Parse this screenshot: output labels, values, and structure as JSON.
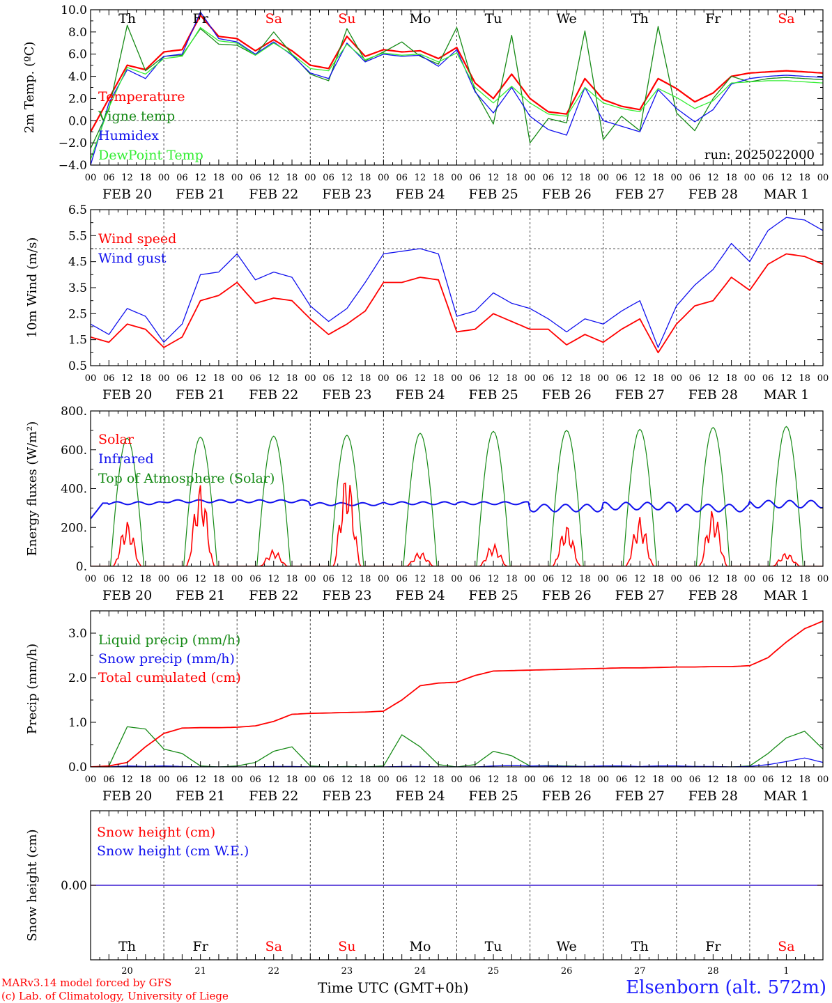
{
  "run_label": "run: 2025022000",
  "footer": {
    "credit_1": "MARv3.14 model forced by GFS",
    "credit_2": "(c) Lab. of Climatology, University of Liege",
    "time_axis": "Time UTC (GMT+0h)",
    "station": "Elsenborn (alt. 572m)"
  },
  "colors": {
    "red": "#ff0000",
    "green": "#168a16",
    "blue": "#1010ee",
    "lightgreen": "#33ee33",
    "weekend": "#ff0000",
    "weekday": "#000000"
  },
  "days": [
    {
      "abbr": "Th",
      "date": "FEB 20",
      "num": "20",
      "weekend": false
    },
    {
      "abbr": "Fr",
      "date": "FEB 21",
      "num": "21",
      "weekend": false
    },
    {
      "abbr": "Sa",
      "date": "FEB 22",
      "num": "22",
      "weekend": true
    },
    {
      "abbr": "Su",
      "date": "FEB 23",
      "num": "23",
      "weekend": true
    },
    {
      "abbr": "Mo",
      "date": "FEB 24",
      "num": "24",
      "weekend": false
    },
    {
      "abbr": "Tu",
      "date": "FEB 25",
      "num": "25",
      "weekend": false
    },
    {
      "abbr": "We",
      "date": "FEB 26",
      "num": "26",
      "weekend": false
    },
    {
      "abbr": "Th",
      "date": "FEB 27",
      "num": "27",
      "weekend": false
    },
    {
      "abbr": "Fr",
      "date": "FEB 28",
      "num": "28",
      "weekend": false
    },
    {
      "abbr": "Sa",
      "date": "MAR  1",
      "num": "1",
      "weekend": true
    }
  ],
  "hour_labels": [
    "00",
    "06",
    "12",
    "18"
  ],
  "chart_data": [
    {
      "type": "line",
      "ylabel": "2m Temp. (ºC)",
      "ylim": [
        -4,
        10
      ],
      "yticks": [
        "−4.0",
        "−2.0",
        "0.0",
        "2.0",
        "4.0",
        "6.0",
        "8.0",
        "10.0"
      ],
      "ytick_values": [
        -4,
        -2,
        0,
        2,
        4,
        6,
        8,
        10
      ],
      "ref_line": 0,
      "show_day_abbr": true,
      "x_hours": [
        0,
        6,
        12,
        18,
        24,
        30,
        36,
        42,
        48,
        54,
        60,
        66,
        72,
        78,
        84,
        90,
        96,
        102,
        108,
        114,
        120,
        126,
        132,
        138,
        144,
        150,
        156,
        162,
        168,
        174,
        180,
        186,
        192,
        198,
        204,
        210,
        216,
        222,
        228,
        234,
        240
      ],
      "series": [
        {
          "name": "Temperature",
          "color": "#ff0000",
          "width": 2.2,
          "values": [
            -1.0,
            2.0,
            5.0,
            4.6,
            6.2,
            6.4,
            9.5,
            7.6,
            7.4,
            6.3,
            7.3,
            6.3,
            5.0,
            4.7,
            7.6,
            5.8,
            6.4,
            6.2,
            6.3,
            5.6,
            6.6,
            3.4,
            2.0,
            4.2,
            2.0,
            0.8,
            0.6,
            3.8,
            1.9,
            1.3,
            1.0,
            3.8,
            2.9,
            1.7,
            2.5,
            4.0,
            4.3,
            4.4,
            4.5,
            4.4,
            4.3
          ]
        },
        {
          "name": "Vigne temp",
          "color": "#168a16",
          "width": 1.3,
          "values": [
            -2.5,
            1.0,
            8.6,
            4.5,
            5.8,
            5.9,
            8.3,
            6.9,
            6.8,
            5.9,
            8.0,
            6.0,
            4.2,
            3.6,
            8.3,
            5.4,
            6.2,
            7.1,
            5.8,
            5.1,
            8.4,
            2.7,
            -0.3,
            7.7,
            -2.0,
            0.2,
            -0.2,
            8.1,
            -1.7,
            0.4,
            -0.9,
            8.5,
            0.7,
            -0.9,
            2.0,
            4.0,
            3.5,
            3.8,
            3.9,
            3.8,
            3.7
          ]
        },
        {
          "name": "Humidex",
          "color": "#1010ee",
          "width": 1.3,
          "values": [
            -4.0,
            1.6,
            4.6,
            3.8,
            5.8,
            6.0,
            9.8,
            7.4,
            7.1,
            6.0,
            7.1,
            5.9,
            4.3,
            3.8,
            7.0,
            5.3,
            6.0,
            5.8,
            5.9,
            4.9,
            6.4,
            2.6,
            0.7,
            3.0,
            0.4,
            -0.8,
            -1.3,
            3.0,
            0.0,
            -0.5,
            -1.0,
            2.8,
            1.1,
            -0.1,
            1.0,
            3.3,
            3.8,
            4.0,
            4.1,
            4.0,
            3.9
          ]
        },
        {
          "name": "DewPoint Temp",
          "color": "#33ee33",
          "width": 1.3,
          "values": [
            -3.5,
            1.2,
            4.8,
            4.2,
            5.6,
            5.8,
            8.4,
            7.2,
            7.0,
            5.9,
            7.0,
            6.0,
            4.7,
            4.5,
            6.9,
            5.5,
            6.1,
            5.9,
            6.0,
            5.3,
            6.1,
            3.0,
            1.6,
            3.1,
            1.6,
            0.6,
            0.4,
            3.0,
            1.6,
            1.1,
            0.8,
            2.9,
            2.1,
            1.1,
            1.8,
            3.4,
            3.5,
            3.6,
            3.6,
            3.5,
            3.4
          ]
        }
      ]
    },
    {
      "type": "line",
      "ylabel": "10m Wind (m/s)",
      "ylim": [
        0.5,
        6.5
      ],
      "yticks": [
        "0.5",
        "1.5",
        "2.5",
        "3.5",
        "4.5",
        "5.5",
        "6.5"
      ],
      "ytick_values": [
        0.5,
        1.5,
        2.5,
        3.5,
        4.5,
        5.5,
        6.5
      ],
      "ref_line": 5,
      "show_day_abbr": false,
      "x_hours": [
        0,
        6,
        12,
        18,
        24,
        30,
        36,
        42,
        48,
        54,
        60,
        66,
        72,
        78,
        84,
        90,
        96,
        102,
        108,
        114,
        120,
        126,
        132,
        138,
        144,
        150,
        156,
        162,
        168,
        174,
        180,
        186,
        192,
        198,
        204,
        210,
        216,
        222,
        228,
        234,
        240
      ],
      "series": [
        {
          "name": "Wind speed",
          "color": "#ff0000",
          "width": 1.8,
          "values": [
            1.6,
            1.4,
            2.1,
            1.9,
            1.2,
            1.6,
            3.0,
            3.2,
            3.7,
            2.9,
            3.1,
            3.0,
            2.3,
            1.7,
            2.1,
            2.6,
            3.7,
            3.7,
            3.9,
            3.8,
            1.8,
            1.9,
            2.5,
            2.2,
            1.9,
            1.9,
            1.3,
            1.7,
            1.4,
            1.9,
            2.3,
            1.0,
            2.1,
            2.8,
            3.0,
            3.9,
            3.4,
            4.4,
            4.8,
            4.7,
            4.4
          ]
        },
        {
          "name": "Wind gust",
          "color": "#1010ee",
          "width": 1.3,
          "values": [
            2.1,
            1.7,
            2.7,
            2.4,
            1.4,
            2.1,
            4.0,
            4.1,
            4.8,
            3.8,
            4.1,
            3.9,
            2.8,
            2.2,
            2.7,
            3.7,
            4.8,
            4.9,
            5.0,
            4.8,
            2.4,
            2.6,
            3.3,
            2.9,
            2.7,
            2.3,
            1.8,
            2.3,
            2.1,
            2.6,
            3.0,
            1.2,
            2.8,
            3.6,
            4.2,
            5.2,
            4.5,
            5.7,
            6.2,
            6.1,
            5.7
          ]
        }
      ]
    },
    {
      "type": "line",
      "ylabel": "Energy fluxes (W/m²)",
      "ylim": [
        0,
        800
      ],
      "yticks": [
        "0.",
        "200.",
        "400.",
        "600.",
        "800."
      ],
      "ytick_values": [
        0,
        200,
        400,
        600,
        800
      ],
      "ref_line": null,
      "show_day_abbr": false,
      "solar_peaks": [
        235,
        430,
        85,
        490,
        75,
        115,
        215,
        255,
        295,
        70
      ],
      "toa_peaks": [
        660,
        665,
        670,
        675,
        685,
        695,
        700,
        705,
        715,
        720
      ],
      "infrared_daily": [
        325,
        335,
        335,
        320,
        325,
        325,
        300,
        310,
        300,
        320
      ],
      "series": [
        {
          "name": "Solar",
          "color": "#ff0000",
          "width": 1.6
        },
        {
          "name": "Infrared",
          "color": "#1010ee",
          "width": 2.0
        },
        {
          "name": "Top of Atmosphere (Solar)",
          "color": "#168a16",
          "width": 1.2
        }
      ]
    },
    {
      "type": "line",
      "ylabel": "Precip (mm/h)",
      "ylim": [
        0,
        3.5
      ],
      "yticks": [
        "0.0",
        "1.0",
        "2.0",
        "3.0"
      ],
      "ytick_values": [
        0,
        1,
        2,
        3
      ],
      "ref_line": null,
      "show_day_abbr": false,
      "x_hours": [
        0,
        6,
        12,
        18,
        24,
        30,
        36,
        42,
        48,
        54,
        60,
        66,
        72,
        78,
        84,
        90,
        96,
        102,
        108,
        114,
        120,
        126,
        132,
        138,
        144,
        150,
        156,
        162,
        168,
        174,
        180,
        186,
        192,
        198,
        204,
        210,
        216,
        222,
        228,
        234,
        240
      ],
      "series": [
        {
          "name": "Liquid precip (mm/h)",
          "color": "#168a16",
          "width": 1.3,
          "values": [
            0,
            0.02,
            0.9,
            0.85,
            0.4,
            0.3,
            0.02,
            0,
            0.02,
            0.1,
            0.35,
            0.45,
            0.02,
            0,
            0.01,
            0,
            0.02,
            0.72,
            0.45,
            0.05,
            0,
            0.05,
            0.35,
            0.25,
            0.02,
            0.03,
            0.02,
            0.01,
            0,
            0.01,
            0,
            0,
            0,
            0.01,
            0,
            0,
            0.02,
            0.3,
            0.65,
            0.8,
            0.4
          ]
        },
        {
          "name": "Snow precip (mm/h)",
          "color": "#1010ee",
          "width": 1.3,
          "values": [
            0,
            0,
            0.02,
            0.01,
            0.02,
            0.01,
            0,
            0,
            0,
            0,
            0.01,
            0.01,
            0,
            0,
            0,
            0,
            0,
            0.01,
            0.01,
            0,
            0,
            0,
            0.02,
            0.03,
            0.02,
            0.02,
            0.01,
            0.01,
            0.02,
            0.02,
            0.01,
            0.02,
            0.02,
            0.01,
            0.01,
            0,
            0.01,
            0.05,
            0.12,
            0.2,
            0.1
          ]
        },
        {
          "name": "Total cumulated (cm)",
          "color": "#ff0000",
          "width": 1.8,
          "values": [
            0,
            0.02,
            0.1,
            0.45,
            0.75,
            0.87,
            0.88,
            0.88,
            0.89,
            0.92,
            1.02,
            1.18,
            1.2,
            1.21,
            1.22,
            1.23,
            1.25,
            1.5,
            1.82,
            1.88,
            1.9,
            2.05,
            2.15,
            2.16,
            2.17,
            2.18,
            2.19,
            2.2,
            2.21,
            2.22,
            2.22,
            2.23,
            2.24,
            2.24,
            2.25,
            2.25,
            2.27,
            2.45,
            2.8,
            3.1,
            3.27
          ]
        }
      ]
    },
    {
      "type": "line",
      "ylabel": "Snow height (cm)",
      "ylim": [
        -1,
        1
      ],
      "yticks": [
        "0.00"
      ],
      "ytick_values": [
        0
      ],
      "ref_line": null,
      "show_day_abbr": false,
      "x_hours": [
        0,
        240
      ],
      "series": [
        {
          "name": "Snow height (cm)",
          "color": "#ff0000",
          "width": 1.3,
          "values": [
            0,
            0
          ]
        },
        {
          "name": "Snow height (cm W.E.)",
          "color": "#1010ee",
          "width": 1.3,
          "values": [
            0,
            0
          ]
        }
      ]
    }
  ]
}
